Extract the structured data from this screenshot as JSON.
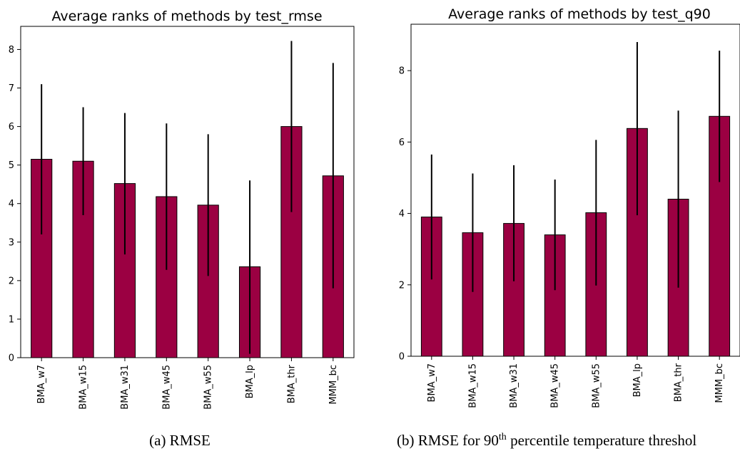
{
  "chart_data": [
    {
      "type": "bar",
      "title": "Average ranks of methods by test_rmse",
      "xlabel": "",
      "ylabel": "",
      "categories": [
        "BMA_w7",
        "BMA_w15",
        "BMA_w31",
        "BMA_w45",
        "BMA_w55",
        "BMA_lp",
        "BMA_thr",
        "MMM_bc"
      ],
      "values": [
        5.15,
        5.1,
        4.52,
        4.18,
        3.96,
        2.36,
        6.0,
        4.72
      ],
      "error_low": [
        3.2,
        3.7,
        2.68,
        2.28,
        2.12,
        0.1,
        3.78,
        1.8
      ],
      "error_high": [
        7.1,
        6.5,
        6.35,
        6.08,
        5.8,
        4.6,
        8.22,
        7.65
      ],
      "ylim": [
        0,
        8.6
      ],
      "yticks": [
        0,
        1,
        2,
        3,
        4,
        5,
        6,
        7,
        8
      ],
      "bar_color": "#9b0042",
      "grid": false,
      "caption": "(a) RMSE"
    },
    {
      "type": "bar",
      "title": "Average ranks of methods by test_q90",
      "xlabel": "",
      "ylabel": "",
      "categories": [
        "BMA_w7",
        "BMA_w15",
        "BMA_w31",
        "BMA_w45",
        "BMA_w55",
        "BMA_lp",
        "BMA_thr",
        "MMM_bc"
      ],
      "values": [
        3.9,
        3.46,
        3.72,
        3.4,
        4.02,
        6.38,
        4.4,
        6.72
      ],
      "error_low": [
        2.15,
        1.8,
        2.1,
        1.85,
        1.98,
        3.95,
        1.92,
        4.88
      ],
      "error_high": [
        5.65,
        5.12,
        5.35,
        4.95,
        6.06,
        8.8,
        6.88,
        8.56
      ],
      "ylim": [
        0,
        9.3
      ],
      "yticks": [
        0,
        2,
        4,
        6,
        8
      ],
      "bar_color": "#9b0042",
      "grid": false,
      "caption_pre": "(b) RMSE for 90",
      "caption_sup": "th",
      "caption_post": " percentile temperature threshol"
    }
  ]
}
